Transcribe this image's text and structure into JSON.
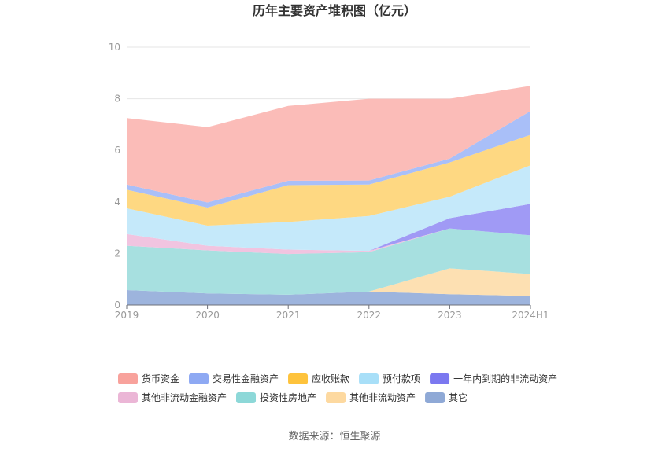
{
  "chart_data": {
    "type": "area",
    "stacked": true,
    "title": "历年主要资产堆积图（亿元）",
    "x": [
      "2019",
      "2020",
      "2021",
      "2022",
      "2023",
      "2024H1"
    ],
    "ylim": [
      0,
      10
    ],
    "yticks": [
      0,
      2,
      4,
      6,
      8,
      10
    ],
    "grid": true,
    "legend_position": "bottom",
    "series": [
      {
        "name": "其它",
        "color": "#9db4dd",
        "values": [
          0.58,
          0.45,
          0.4,
          0.52,
          0.42,
          0.35
        ]
      },
      {
        "name": "其他非流动资产",
        "color": "#fde0b2",
        "values": [
          0,
          0,
          0,
          0,
          1.0,
          0.85
        ]
      },
      {
        "name": "投资性房地产",
        "color": "#a7e0e0",
        "values": [
          1.72,
          1.67,
          1.58,
          1.53,
          1.55,
          1.5
        ]
      },
      {
        "name": "其他非流动金融资产",
        "color": "#f1c4e0",
        "values": [
          0.45,
          0.18,
          0.17,
          0.05,
          0,
          0
        ]
      },
      {
        "name": "一年内到期的非流动资产",
        "color": "#a09af5",
        "values": [
          0,
          0,
          0,
          0,
          0.4,
          1.22
        ]
      },
      {
        "name": "预付款项",
        "color": "#c5e9fa",
        "values": [
          1.0,
          0.78,
          1.07,
          1.35,
          0.83,
          1.5
        ]
      },
      {
        "name": "应收账款",
        "color": "#fed882",
        "values": [
          0.72,
          0.7,
          1.43,
          1.22,
          1.33,
          1.18
        ]
      },
      {
        "name": "交易性金融资产",
        "color": "#a9bff8",
        "values": [
          0.2,
          0.2,
          0.17,
          0.16,
          0.15,
          0.92
        ]
      },
      {
        "name": "货币资金",
        "color": "#fbbcb8",
        "values": [
          2.58,
          2.92,
          2.9,
          3.17,
          2.32,
          0.98
        ]
      }
    ],
    "legend": [
      {
        "name": "货币资金",
        "color": "#f8a29c"
      },
      {
        "name": "交易性金融资产",
        "color": "#8ea9f3"
      },
      {
        "name": "应收账款",
        "color": "#fec33c"
      },
      {
        "name": "预付款项",
        "color": "#a8dff8"
      },
      {
        "name": "一年内到期的非流动资产",
        "color": "#7b78f0"
      },
      {
        "name": "其他非流动金融资产",
        "color": "#ebb6d6"
      },
      {
        "name": "投资性房地产",
        "color": "#8dd8d8"
      },
      {
        "name": "其他非流动资产",
        "color": "#fdd9a0"
      },
      {
        "name": "其它",
        "color": "#8fa9d6"
      }
    ],
    "source": "数据来源：恒生聚源"
  }
}
